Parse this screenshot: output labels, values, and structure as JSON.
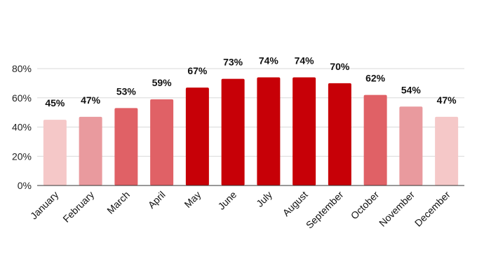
{
  "chart_data": {
    "type": "bar",
    "title": "",
    "xlabel": "",
    "ylabel": "",
    "ylim": [
      0,
      80
    ],
    "y_ticks": [
      "0%",
      "20%",
      "40%",
      "60%",
      "80%"
    ],
    "y_tick_values": [
      0,
      20,
      40,
      60,
      80
    ],
    "grid": "horizontal",
    "categories": [
      "January",
      "February",
      "March",
      "April",
      "May",
      "June",
      "July",
      "August",
      "September",
      "October",
      "November",
      "December"
    ],
    "values": [
      45,
      47,
      53,
      59,
      67,
      73,
      74,
      74,
      70,
      62,
      54,
      47
    ],
    "data_labels": [
      "45%",
      "47%",
      "53%",
      "59%",
      "67%",
      "73%",
      "74%",
      "74%",
      "70%",
      "62%",
      "54%",
      "47%"
    ],
    "bar_colors": [
      "#f5c8c8",
      "#e99a9e",
      "#e06166",
      "#e06166",
      "#c70007",
      "#c70007",
      "#c70007",
      "#c70007",
      "#c70007",
      "#e06166",
      "#e99a9e",
      "#f5c8c8"
    ]
  }
}
